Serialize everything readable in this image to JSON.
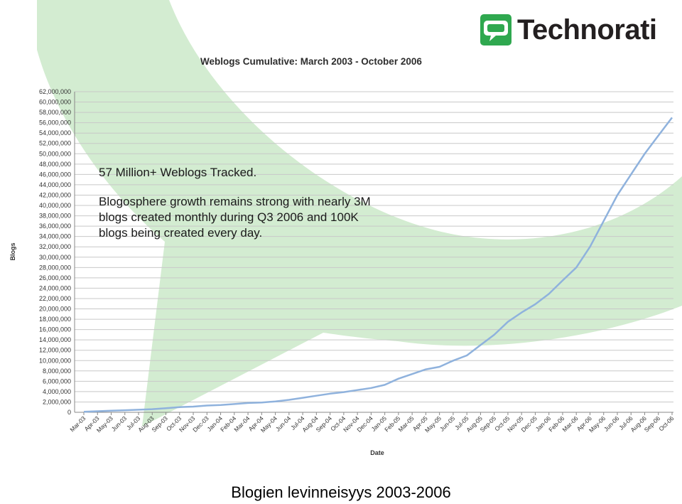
{
  "logo": {
    "brand": "Technorati",
    "colors": {
      "mark": "#2fa84f",
      "text": "#231f20"
    }
  },
  "caption": "Blogien levinneisyys 2003-2006",
  "annotation": {
    "headline": "57 Million+ Weblogs Tracked.",
    "lines": [
      "Blogosphere growth remains strong with nearly 3M",
      "blogs created monthly during Q3 2006 and 100K",
      "blogs being created every day."
    ]
  },
  "colors": {
    "background_shape": "#d3ecd1",
    "line": "#8fb2dd",
    "grid": "#c8c8c8"
  },
  "chart_data": {
    "type": "line",
    "title": "Weblogs Cumulative: March 2003 - October 2006",
    "xlabel": "Date",
    "ylabel": "Blogs",
    "ylim": [
      0,
      62000000
    ],
    "grid": true,
    "y_ticks": [
      "0",
      "2,000,000",
      "4,000,000",
      "6,000,000",
      "8,000,000",
      "10,000,000",
      "12,000,000",
      "14,000,000",
      "16,000,000",
      "18,000,000",
      "20,000,000",
      "22,000,000",
      "24,000,000",
      "26,000,000",
      "28,000,000",
      "30,000,000",
      "32,000,000",
      "34,000,000",
      "36,000,000",
      "38,000,000",
      "40,000,000",
      "42,000,000",
      "44,000,000",
      "46,000,000",
      "48,000,000",
      "50,000,000",
      "52,000,000",
      "54,000,000",
      "56,000,000",
      "58,000,000",
      "60,000,000",
      "62,000,000"
    ],
    "categories": [
      "Mar-03",
      "Apr-03",
      "May-03",
      "Jun-03",
      "Jul-03",
      "Aug-03",
      "Sep-03",
      "Oct-03",
      "Nov-03",
      "Dec-03",
      "Jan-04",
      "Feb-04",
      "Mar-04",
      "Apr-04",
      "May-04",
      "Jun-04",
      "Jul-04",
      "Aug-04",
      "Sep-04",
      "Oct-04",
      "Nov-04",
      "Dec-04",
      "Jan-05",
      "Feb-05",
      "Mar-05",
      "Apr-05",
      "May-05",
      "Jun-05",
      "Jul-05",
      "Aug-05",
      "Sep-05",
      "Oct-05",
      "Nov-05",
      "Dec-05",
      "Jan-06",
      "Feb-06",
      "Mar-06",
      "Apr-06",
      "May-06",
      "Jun-06",
      "Jul-06",
      "Aug-06",
      "Sep-06",
      "Oct-06"
    ],
    "series": [
      {
        "values": [
          100000,
          200000,
          300000,
          400000,
          500000,
          600000,
          800000,
          1000000,
          1100000,
          1300000,
          1400000,
          1600000,
          1800000,
          1900000,
          2100000,
          2400000,
          2800000,
          3200000,
          3600000,
          3900000,
          4300000,
          4700000,
          5300000,
          6500000,
          7400000,
          8300000,
          8800000,
          10000000,
          11000000,
          13000000,
          15000000,
          17500000,
          19300000,
          20900000,
          22900000,
          25500000,
          28000000,
          32000000,
          37000000,
          42000000,
          46000000,
          50000000,
          53500000,
          57000000
        ]
      }
    ]
  }
}
